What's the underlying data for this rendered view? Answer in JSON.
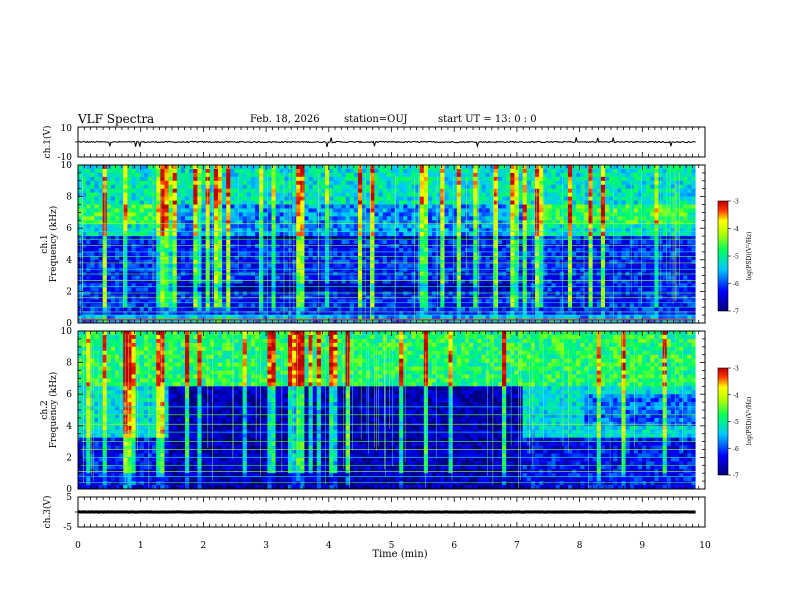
{
  "header": {
    "title": "VLF Spectra",
    "date": "Feb. 18, 2026",
    "station": "station=OUJ",
    "start": "start UT =  13: 0  : 0"
  },
  "chart_data": [
    {
      "type": "line",
      "name": "ch1-waveform",
      "ylabel": "ch.1(V)",
      "ytick_labels": [
        "10",
        "-10"
      ],
      "ylim": [
        -10,
        10
      ],
      "xlim": [
        0,
        10
      ],
      "level": 0,
      "amplitude": 1.2
    },
    {
      "type": "heatmap",
      "name": "ch1-spectrogram",
      "ylabel_line1": "ch.1",
      "ylabel_line2": "Frequency (kHz)",
      "yticks": [
        "0",
        "2",
        "4",
        "6",
        "8",
        "10"
      ],
      "ylim": [
        0,
        10
      ],
      "xlim": [
        0,
        10
      ],
      "data_end_min": 9.85,
      "colorbar": {
        "label": "log(PSD)(V²/Hz)",
        "ticks": [
          "-3",
          "-4",
          "-5",
          "-6",
          "-7"
        ],
        "range": [
          -7,
          -3
        ]
      },
      "background_level": -6.2,
      "high_band_khz": [
        5.5,
        10
      ],
      "high_band_level": -5.2,
      "quiet_interval_min": [
        1.45,
        7.1
      ],
      "lines_khz": [
        0.2,
        0.5,
        0.7,
        1.0,
        1.3,
        1.6,
        1.9,
        2.3,
        2.7,
        3.1,
        3.4,
        3.8,
        4.2,
        4.5,
        4.9,
        5.3,
        5.8,
        6.3
      ]
    },
    {
      "type": "heatmap",
      "name": "ch2-spectrogram",
      "ylabel_line1": "ch.2",
      "ylabel_line2": "Frequency (kHz)",
      "yticks": [
        "0",
        "2",
        "4",
        "6",
        "8",
        "10"
      ],
      "ylim": [
        0,
        10
      ],
      "xlim": [
        0,
        10
      ],
      "data_end_min": 9.85,
      "colorbar": {
        "label": "log(PSD)(V²/Hz)",
        "ticks": [
          "-3",
          "-4",
          "-5",
          "-6",
          "-7"
        ],
        "range": [
          -7,
          -3
        ]
      },
      "background_level": -6.3,
      "high_band_khz": [
        6.5,
        10
      ],
      "high_band_level": -4.8,
      "mid_band_khz": [
        3.2,
        6.5
      ],
      "enhanced_intervals_min": [
        [
          0,
          1.45
        ],
        [
          7.1,
          10
        ]
      ],
      "lines_khz": [
        0.4,
        0.8,
        1.1,
        1.5,
        2.0,
        2.5,
        3.0,
        3.6,
        4.1,
        4.7,
        5.2
      ]
    },
    {
      "type": "line",
      "name": "ch3-waveform",
      "ylabel": "ch.3(V)",
      "ytick_labels": [
        "5",
        "-5"
      ],
      "ylim": [
        -5,
        5
      ],
      "xlim": [
        0,
        10
      ],
      "level": 0,
      "amplitude": 0.3,
      "xlabel": "Time (min)",
      "xticks": [
        "0",
        "1",
        "2",
        "3",
        "4",
        "5",
        "6",
        "7",
        "8",
        "9",
        "10"
      ]
    }
  ]
}
